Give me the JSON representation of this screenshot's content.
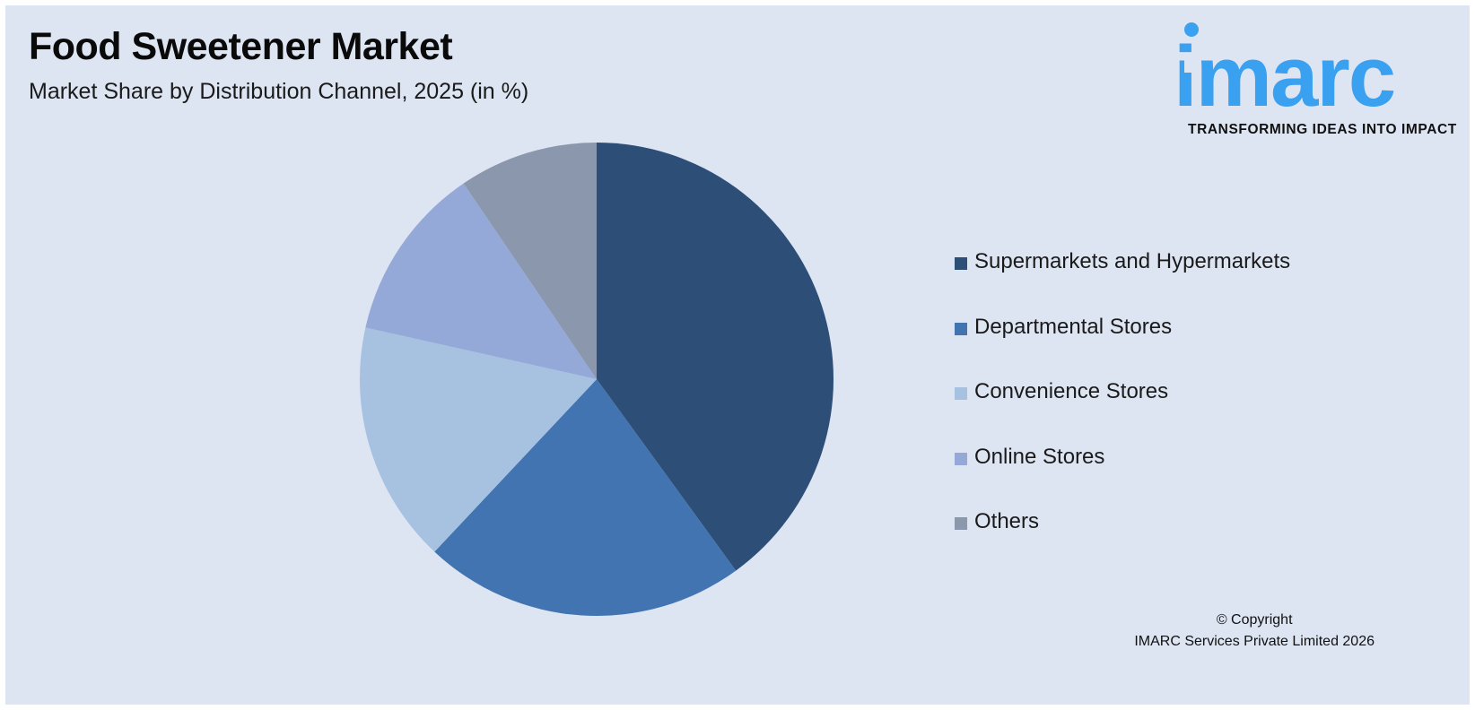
{
  "header": {
    "title": "Food Sweetener Market",
    "subtitle": "Market Share by Distribution Channel, 2025 (in %)"
  },
  "logo": {
    "wordmark": "imarc",
    "tagline": "TRANSFORMING IDEAS INTO IMPACT",
    "color": "#3aa0f0"
  },
  "chart_data": {
    "type": "pie",
    "title": "Market Share by Distribution Channel, 2025 (in %)",
    "legend_position": "right",
    "slices": [
      {
        "name": "Supermarkets and Hypermarkets",
        "value": 40,
        "color": "#2d4e76"
      },
      {
        "name": "Departmental Stores",
        "value": 22,
        "color": "#4174b0"
      },
      {
        "name": "Convenience Stores",
        "value": 16.5,
        "color": "#a7c1e1"
      },
      {
        "name": "Online Stores",
        "value": 12,
        "color": "#95a9d8"
      },
      {
        "name": "Others",
        "value": 9.5,
        "color": "#8a97ad"
      }
    ]
  },
  "footer": {
    "copyright_line1": "© Copyright",
    "copyright_line2": "IMARC Services Private Limited 2026"
  }
}
